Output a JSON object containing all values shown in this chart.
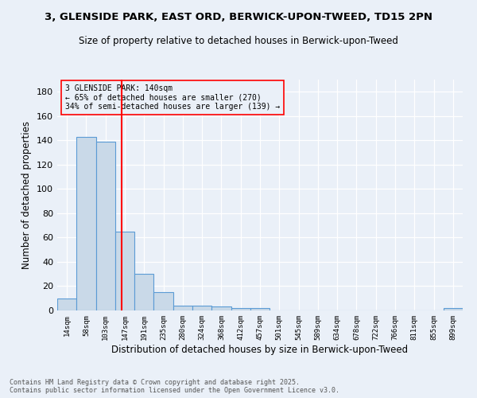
{
  "title": "3, GLENSIDE PARK, EAST ORD, BERWICK-UPON-TWEED, TD15 2PN",
  "subtitle": "Size of property relative to detached houses in Berwick-upon-Tweed",
  "xlabel": "Distribution of detached houses by size in Berwick-upon-Tweed",
  "ylabel": "Number of detached properties",
  "bin_labels": [
    "14sqm",
    "58sqm",
    "103sqm",
    "147sqm",
    "191sqm",
    "235sqm",
    "280sqm",
    "324sqm",
    "368sqm",
    "412sqm",
    "457sqm",
    "501sqm",
    "545sqm",
    "589sqm",
    "634sqm",
    "678sqm",
    "722sqm",
    "766sqm",
    "811sqm",
    "855sqm",
    "899sqm"
  ],
  "bar_values": [
    10,
    143,
    139,
    65,
    30,
    15,
    4,
    4,
    3,
    2,
    2,
    0,
    0,
    0,
    0,
    0,
    0,
    0,
    0,
    0,
    2
  ],
  "bar_color": "#c9d9e8",
  "bar_edge_color": "#5b9bd5",
  "property_size_label": "3 GLENSIDE PARK: 140sqm",
  "pct_detached_smaller": 65,
  "num_detached_smaller": 270,
  "pct_semi_larger": 34,
  "num_semi_larger": 139,
  "vline_x_index": 2.85,
  "ylim": [
    0,
    190
  ],
  "yticks": [
    0,
    20,
    40,
    60,
    80,
    100,
    120,
    140,
    160,
    180
  ],
  "background_color": "#eaf0f8",
  "grid_color": "#c8d4e8",
  "footer_text": "Contains HM Land Registry data © Crown copyright and database right 2025.\nContains public sector information licensed under the Open Government Licence v3.0."
}
